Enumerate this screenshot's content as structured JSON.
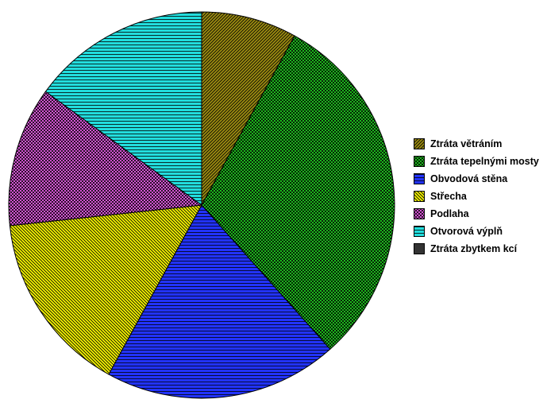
{
  "chart_data": {
    "type": "pie",
    "title": "",
    "start_angle_deg": 0,
    "direction": "clockwise",
    "series": [
      {
        "name": "Ztráta větráním",
        "value": 8.0,
        "color": "#9a8a10",
        "pattern": "diag-up"
      },
      {
        "name": "Ztráta tepelnými mosty",
        "value": 30.4,
        "color": "#22dd22",
        "pattern": "crosshatch"
      },
      {
        "name": "Obvodová stěna",
        "value": 19.6,
        "color": "#2233ff",
        "pattern": "horizontal"
      },
      {
        "name": "Střecha",
        "value": 15.3,
        "color": "#f0f000",
        "pattern": "diag-down"
      },
      {
        "name": "Podlaha",
        "value": 11.7,
        "color": "#ff66ff",
        "pattern": "crosshatch"
      },
      {
        "name": "Otvorová výplň",
        "value": 15.0,
        "color": "#22dddd",
        "pattern": "horizontal"
      },
      {
        "name": "Ztráta zbytkem kcí",
        "value": 0.0,
        "color": "#333333",
        "pattern": "solid"
      }
    ],
    "legend_position": "right"
  }
}
